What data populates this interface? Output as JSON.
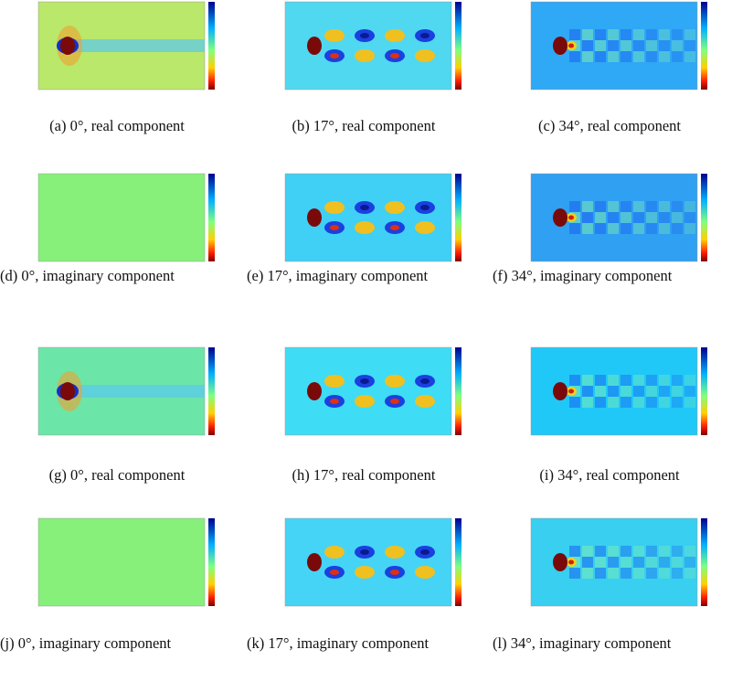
{
  "panels": [
    {
      "label": "(a)",
      "text": "0°, real component"
    },
    {
      "label": "(b)",
      "text": "17°, real component"
    },
    {
      "label": "(c)",
      "text": "34°, real component"
    },
    {
      "label": "(d)",
      "text": "0°, imaginary component"
    },
    {
      "label": "(e)",
      "text": "17°, imaginary component"
    },
    {
      "label": "(f)",
      "text": "34°, imaginary component"
    },
    {
      "label": "(g)",
      "text": "0°, real component"
    },
    {
      "label": "(h)",
      "text": "17°, real component"
    },
    {
      "label": "(i)",
      "text": "34°, real component"
    },
    {
      "label": "(j)",
      "text": "0°, imaginary component"
    },
    {
      "label": "(k)",
      "text": "17°, imaginary component"
    },
    {
      "label": "(l)",
      "text": "34°, imaginary component"
    }
  ]
}
